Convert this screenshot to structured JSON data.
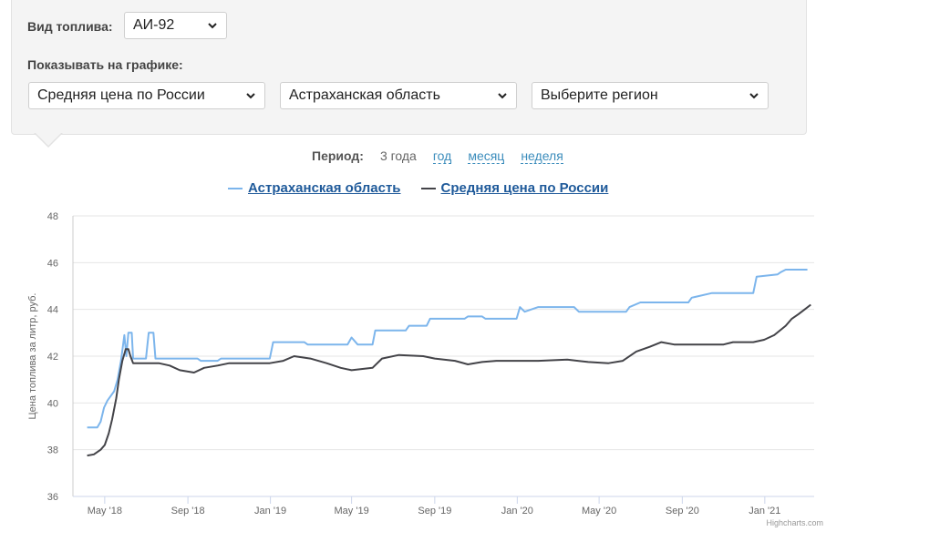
{
  "filters": {
    "fuel_label": "Вид топлива:",
    "fuel_value": "АИ-92",
    "show_label": "Показывать на графике:",
    "select1": "Средняя цена по России",
    "select2": "Астраханская область",
    "select3": "Выберите регион"
  },
  "period": {
    "label": "Период:",
    "current": "3 года",
    "links": [
      "год",
      "месяц",
      "неделя"
    ]
  },
  "credits": "Highcharts.com",
  "colors": {
    "astrakhan": "#7cb5ec",
    "russia": "#434348"
  },
  "chart_data": {
    "type": "line",
    "title": "",
    "xlabel": "",
    "ylabel": "Цена топлива за литр, руб.",
    "ylim": [
      36,
      48
    ],
    "yticks": [
      36,
      38,
      40,
      42,
      44,
      46,
      48
    ],
    "xticks": [
      "May '18",
      "Sep '18",
      "Jan '19",
      "May '19",
      "Sep '19",
      "Jan '20",
      "May '20",
      "Sep '20",
      "Jan '21"
    ],
    "xtick_dates": [
      "2018-05-01",
      "2018-09-01",
      "2019-01-01",
      "2019-05-01",
      "2019-09-01",
      "2020-01-01",
      "2020-05-01",
      "2020-09-01",
      "2021-01-01"
    ],
    "x_range": [
      "2018-03-15",
      "2021-03-15"
    ],
    "grid": true,
    "legend": "top",
    "series": [
      {
        "name": "Астраханская область",
        "color": "#7cb5ec",
        "points": [
          [
            "2018-04-05",
            38.95
          ],
          [
            "2018-04-20",
            38.95
          ],
          [
            "2018-04-25",
            39.2
          ],
          [
            "2018-04-30",
            39.8
          ],
          [
            "2018-05-05",
            40.1
          ],
          [
            "2018-05-15",
            40.5
          ],
          [
            "2018-05-20",
            41.0
          ],
          [
            "2018-05-25",
            41.8
          ],
          [
            "2018-05-30",
            42.9
          ],
          [
            "2018-06-02",
            42.0
          ],
          [
            "2018-06-05",
            43.0
          ],
          [
            "2018-06-10",
            43.0
          ],
          [
            "2018-06-12",
            41.9
          ],
          [
            "2018-07-01",
            41.9
          ],
          [
            "2018-07-05",
            43.0
          ],
          [
            "2018-07-12",
            43.0
          ],
          [
            "2018-07-15",
            41.9
          ],
          [
            "2018-09-15",
            41.9
          ],
          [
            "2018-09-20",
            41.8
          ],
          [
            "2018-10-15",
            41.8
          ],
          [
            "2018-10-20",
            41.9
          ],
          [
            "2018-12-31",
            41.9
          ],
          [
            "2019-01-05",
            42.6
          ],
          [
            "2019-02-20",
            42.6
          ],
          [
            "2019-02-25",
            42.5
          ],
          [
            "2019-04-25",
            42.5
          ],
          [
            "2019-05-01",
            42.8
          ],
          [
            "2019-05-10",
            42.5
          ],
          [
            "2019-06-01",
            42.5
          ],
          [
            "2019-06-05",
            43.1
          ],
          [
            "2019-07-20",
            43.1
          ],
          [
            "2019-07-25",
            43.3
          ],
          [
            "2019-08-20",
            43.3
          ],
          [
            "2019-08-25",
            43.6
          ],
          [
            "2019-10-15",
            43.6
          ],
          [
            "2019-10-20",
            43.7
          ],
          [
            "2019-11-10",
            43.7
          ],
          [
            "2019-11-15",
            43.6
          ],
          [
            "2019-12-31",
            43.6
          ],
          [
            "2020-01-05",
            44.1
          ],
          [
            "2020-01-12",
            43.9
          ],
          [
            "2020-02-01",
            44.1
          ],
          [
            "2020-03-25",
            44.1
          ],
          [
            "2020-04-01",
            43.9
          ],
          [
            "2020-06-10",
            43.9
          ],
          [
            "2020-06-15",
            44.1
          ],
          [
            "2020-07-01",
            44.3
          ],
          [
            "2020-09-10",
            44.3
          ],
          [
            "2020-09-15",
            44.5
          ],
          [
            "2020-10-15",
            44.7
          ],
          [
            "2020-12-15",
            44.7
          ],
          [
            "2020-12-20",
            45.4
          ],
          [
            "2021-01-20",
            45.5
          ],
          [
            "2021-01-25",
            45.6
          ],
          [
            "2021-02-01",
            45.7
          ],
          [
            "2021-03-05",
            45.7
          ]
        ]
      },
      {
        "name": "Средняя цена по России",
        "color": "#434348",
        "points": [
          [
            "2018-04-05",
            37.75
          ],
          [
            "2018-04-15",
            37.8
          ],
          [
            "2018-04-25",
            38.0
          ],
          [
            "2018-05-01",
            38.2
          ],
          [
            "2018-05-07",
            38.7
          ],
          [
            "2018-05-12",
            39.3
          ],
          [
            "2018-05-18",
            40.2
          ],
          [
            "2018-05-22",
            41.0
          ],
          [
            "2018-05-27",
            41.8
          ],
          [
            "2018-06-01",
            42.3
          ],
          [
            "2018-06-05",
            42.3
          ],
          [
            "2018-06-08",
            42.0
          ],
          [
            "2018-06-12",
            41.7
          ],
          [
            "2018-07-20",
            41.7
          ],
          [
            "2018-08-05",
            41.6
          ],
          [
            "2018-08-20",
            41.4
          ],
          [
            "2018-09-10",
            41.3
          ],
          [
            "2018-09-25",
            41.5
          ],
          [
            "2018-10-15",
            41.6
          ],
          [
            "2018-11-01",
            41.7
          ],
          [
            "2018-12-01",
            41.7
          ],
          [
            "2018-12-31",
            41.7
          ],
          [
            "2019-01-20",
            41.8
          ],
          [
            "2019-02-05",
            42.0
          ],
          [
            "2019-03-01",
            41.9
          ],
          [
            "2019-03-25",
            41.7
          ],
          [
            "2019-04-15",
            41.5
          ],
          [
            "2019-05-01",
            41.4
          ],
          [
            "2019-06-01",
            41.5
          ],
          [
            "2019-06-15",
            41.9
          ],
          [
            "2019-07-10",
            42.05
          ],
          [
            "2019-08-15",
            42.0
          ],
          [
            "2019-09-01",
            41.9
          ],
          [
            "2019-10-01",
            41.8
          ],
          [
            "2019-10-20",
            41.65
          ],
          [
            "2019-11-10",
            41.75
          ],
          [
            "2019-12-01",
            41.8
          ],
          [
            "2020-02-01",
            41.8
          ],
          [
            "2020-03-15",
            41.85
          ],
          [
            "2020-04-15",
            41.75
          ],
          [
            "2020-05-15",
            41.7
          ],
          [
            "2020-06-05",
            41.8
          ],
          [
            "2020-06-25",
            42.2
          ],
          [
            "2020-07-15",
            42.4
          ],
          [
            "2020-08-01",
            42.6
          ],
          [
            "2020-08-20",
            42.5
          ],
          [
            "2020-10-01",
            42.5
          ],
          [
            "2020-11-01",
            42.5
          ],
          [
            "2020-11-15",
            42.6
          ],
          [
            "2020-12-15",
            42.6
          ],
          [
            "2020-12-31",
            42.7
          ],
          [
            "2021-01-15",
            42.9
          ],
          [
            "2021-02-01",
            43.3
          ],
          [
            "2021-02-10",
            43.6
          ],
          [
            "2021-02-20",
            43.8
          ],
          [
            "2021-03-01",
            44.0
          ],
          [
            "2021-03-10",
            44.2
          ]
        ]
      }
    ]
  }
}
